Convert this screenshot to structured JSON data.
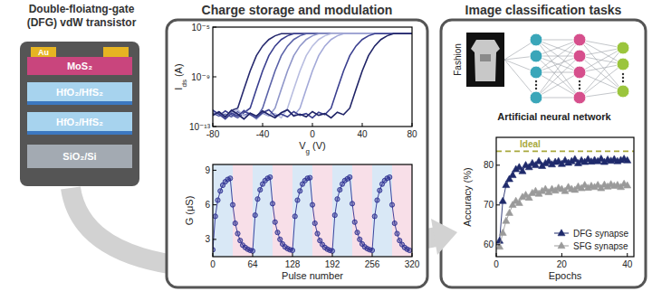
{
  "panels": [
    {
      "title_lines": [
        "Double-floiatng-gate",
        "(DFG) vdW transistor"
      ],
      "layers": [
        "Au",
        "MoS₂",
        "HfO₂/HfS₂",
        "HfO₂/HfS₂",
        "SiO₂/Si"
      ]
    },
    {
      "title": "Charge storage and modulation"
    },
    {
      "title": "Image classification tasks",
      "image_label": "Fashion",
      "network_label": "Artificial neural network"
    }
  ],
  "chart_data": [
    {
      "type": "line",
      "log": "y",
      "x_label": "Vg (V)",
      "y_label": "Ids (A)",
      "xlim": [
        -80,
        80
      ],
      "xticks": [
        -80,
        -40,
        0,
        40,
        80
      ],
      "ylim": [
        1e-13,
        1e-05
      ],
      "yticks": [
        {
          "value": 1e-13,
          "label": "10⁻¹³"
        },
        {
          "value": 1e-09,
          "label": "10⁻⁹"
        },
        {
          "value": 1e-05,
          "label": "10⁻⁵"
        }
      ],
      "x": [
        -80,
        -75,
        -70,
        -65,
        -60,
        -55,
        -50,
        -45,
        -40,
        -35,
        -30,
        -25,
        -20,
        -15,
        -10,
        -5,
        0,
        5,
        10,
        15,
        20,
        25,
        30,
        35,
        40,
        45,
        50,
        55,
        60,
        65,
        70,
        75,
        80
      ],
      "series": [
        {
          "color": "#26296e",
          "line_style": "solid",
          "marker": "none",
          "values": [
            8e-13,
            1.5e-12,
            6e-13,
            2e-12,
            3e-12,
            1e-10,
            3e-09,
            5e-08,
            3e-07,
            1e-06,
            2e-06,
            3e-06,
            3e-06,
            3e-06,
            3e-06,
            3e-06,
            3e-06,
            3e-06,
            3e-06,
            3e-06,
            3e-06,
            3e-06,
            3e-06,
            3e-06,
            3e-06,
            3e-06,
            3e-06,
            3e-06,
            3e-06,
            3e-06,
            3e-06,
            3e-06,
            3e-06
          ]
        },
        {
          "color": "#3a3f8f",
          "line_style": "solid",
          "marker": "none",
          "values": [
            1.2e-12,
            7e-13,
            1.8e-12,
            9e-13,
            5e-13,
            1.3e-12,
            3e-12,
            1e-10,
            3e-09,
            5e-08,
            3e-07,
            1e-06,
            2e-06,
            3e-06,
            3e-06,
            3e-06,
            3e-06,
            3e-06,
            3e-06,
            3e-06,
            3e-06,
            3e-06,
            3e-06,
            3e-06,
            3e-06,
            3e-06,
            3e-06,
            3e-06,
            3e-06,
            3e-06,
            3e-06,
            3e-06,
            3e-06
          ]
        },
        {
          "color": "#5a62a8",
          "line_style": "solid",
          "marker": "none",
          "values": [
            2.2e-12,
            7e-13,
            1e-12,
            6e-13,
            1.6e-12,
            8e-13,
            1.1e-12,
            5e-13,
            3e-12,
            1e-10,
            3e-09,
            5e-08,
            3e-07,
            1e-06,
            2e-06,
            3e-06,
            3e-06,
            3e-06,
            3e-06,
            3e-06,
            3e-06,
            3e-06,
            3e-06,
            3e-06,
            3e-06,
            3e-06,
            3e-06,
            3e-06,
            3e-06,
            3e-06,
            3e-06,
            3e-06,
            3e-06
          ]
        },
        {
          "color": "#8f96c9",
          "line_style": "solid",
          "marker": "none",
          "values": [
            1.4e-12,
            9e-13,
            8e-13,
            1.5e-12,
            6e-13,
            2e-12,
            1e-12,
            4e-13,
            1.2e-12,
            7e-13,
            3e-12,
            1e-10,
            3e-09,
            5e-08,
            3e-07,
            1e-06,
            2e-06,
            3e-06,
            3e-06,
            3e-06,
            3e-06,
            3e-06,
            3e-06,
            3e-06,
            3e-06,
            3e-06,
            3e-06,
            3e-06,
            3e-06,
            3e-06,
            3e-06,
            3e-06,
            3e-06
          ]
        },
        {
          "color": "#b8bde0",
          "line_style": "solid",
          "marker": "none",
          "values": [
            1.8e-12,
            9e-13,
            5e-13,
            1.3e-12,
            2.2e-12,
            7e-13,
            1e-12,
            6e-13,
            1.6e-12,
            8e-13,
            1.1e-12,
            5e-13,
            3e-12,
            1e-10,
            3e-09,
            5e-08,
            3e-07,
            1e-06,
            2e-06,
            3e-06,
            3e-06,
            3e-06,
            3e-06,
            3e-06,
            3e-06,
            3e-06,
            3e-06,
            3e-06,
            3e-06,
            3e-06,
            3e-06,
            3e-06,
            3e-06
          ]
        },
        {
          "color": "#a3a9d8",
          "line_style": "solid",
          "marker": "none",
          "values": [
            8e-13,
            1.5e-12,
            6e-13,
            2e-12,
            1e-12,
            4e-13,
            1.2e-12,
            7e-13,
            1.8e-12,
            9e-13,
            5e-13,
            1.3e-12,
            2.2e-12,
            7e-13,
            3e-12,
            1e-10,
            3e-09,
            5e-08,
            3e-07,
            1e-06,
            2e-06,
            3e-06,
            3e-06,
            3e-06,
            3e-06,
            3e-06,
            3e-06,
            3e-06,
            3e-06,
            3e-06,
            3e-06,
            3e-06,
            3e-06
          ]
        },
        {
          "color": "#3a3f8f",
          "line_style": "solid",
          "marker": "none",
          "values": [
            2e-12,
            1e-12,
            4e-13,
            1.2e-12,
            7e-13,
            1.8e-12,
            9e-13,
            5e-13,
            1.3e-12,
            2.2e-12,
            7e-13,
            1e-12,
            6e-13,
            1.6e-12,
            8e-13,
            1.1e-12,
            5e-13,
            1.4e-12,
            9e-13,
            3e-12,
            1e-10,
            3e-09,
            5e-08,
            3e-07,
            1e-06,
            2e-06,
            3e-06,
            3e-06,
            3e-06,
            3e-06,
            3e-06,
            3e-06,
            3e-06
          ]
        },
        {
          "color": "#1f2366",
          "line_style": "solid",
          "marker": "none",
          "values": [
            8e-13,
            1.5e-12,
            6e-13,
            2e-12,
            1e-12,
            4e-13,
            1.2e-12,
            7e-13,
            1.8e-12,
            9e-13,
            5e-13,
            1.3e-12,
            2.2e-12,
            7e-13,
            1e-12,
            6e-13,
            1.6e-12,
            8e-13,
            1.1e-12,
            5e-13,
            1.4e-12,
            9e-13,
            3e-12,
            1e-10,
            3e-09,
            5e-08,
            3e-07,
            1e-06,
            2e-06,
            3e-06,
            3e-06,
            3e-06,
            3e-06
          ]
        }
      ]
    },
    {
      "type": "line",
      "x_label": "Pulse number",
      "y_label": "G (μS)",
      "xlim": [
        0,
        320
      ],
      "xticks": [
        0,
        64,
        128,
        192,
        256,
        320
      ],
      "ylim": [
        1.5,
        9.5
      ],
      "yticks": [
        3,
        6,
        9
      ],
      "x": [
        0,
        4,
        8,
        12,
        16,
        20,
        24,
        28,
        32,
        36,
        40,
        44,
        48,
        52,
        56,
        60,
        64,
        68,
        72,
        76,
        80,
        84,
        88,
        92,
        96,
        100,
        104,
        108,
        112,
        116,
        120,
        124,
        128,
        132,
        136,
        140,
        144,
        148,
        152,
        156,
        160,
        164,
        168,
        172,
        176,
        180,
        184,
        188,
        192,
        196,
        200,
        204,
        208,
        212,
        216,
        220,
        224,
        228,
        232,
        236,
        240,
        244,
        248,
        252,
        256,
        260,
        264,
        268,
        272,
        276,
        280,
        284,
        288,
        292,
        296,
        300,
        304,
        308,
        312,
        316
      ],
      "series": [
        {
          "color": "#2e3192",
          "marker": "circle",
          "line_style": "solid",
          "values": [
            2.1,
            5.0,
            6.4,
            7.2,
            7.7,
            8.0,
            8.2,
            8.3,
            6.0,
            4.4,
            3.5,
            2.9,
            2.5,
            2.3,
            2.15,
            2.05,
            2.0,
            5.1,
            6.5,
            7.3,
            7.8,
            8.1,
            8.3,
            8.4,
            6.1,
            4.5,
            3.6,
            3.0,
            2.6,
            2.35,
            2.2,
            2.1,
            2.05,
            5.0,
            6.4,
            7.2,
            7.8,
            8.1,
            8.3,
            8.35,
            6.0,
            4.4,
            3.5,
            2.9,
            2.55,
            2.3,
            2.15,
            2.05,
            2.0,
            5.1,
            6.5,
            7.3,
            7.8,
            8.1,
            8.25,
            8.4,
            6.1,
            4.5,
            3.6,
            3.0,
            2.6,
            2.35,
            2.2,
            2.1,
            2.05,
            5.0,
            6.4,
            7.25,
            7.8,
            8.1,
            8.3,
            8.4,
            6.0,
            4.4,
            3.5,
            2.9,
            2.55,
            2.3,
            2.15,
            2.05
          ]
        }
      ]
    },
    {
      "type": "line",
      "x_label": "Epochs",
      "y_label": "Accuracy (%)",
      "legend": "bottom-right",
      "xlim": [
        0,
        42
      ],
      "xticks": [
        0,
        20,
        40
      ],
      "ylim": [
        57,
        87
      ],
      "yticks": [
        60,
        70,
        80
      ],
      "x": [
        1,
        2,
        3,
        4,
        5,
        6,
        7,
        8,
        9,
        10,
        11,
        12,
        13,
        14,
        15,
        16,
        17,
        18,
        19,
        20,
        21,
        22,
        23,
        24,
        25,
        26,
        27,
        28,
        29,
        30,
        31,
        32,
        33,
        34,
        35,
        36,
        37,
        38,
        39,
        40
      ],
      "annotations": [
        {
          "text": "Ideal",
          "y": 83.5,
          "color": "#a8a83c",
          "line_style": "dashed"
        }
      ],
      "series": [
        {
          "name": "DFG synapse",
          "color": "#1f2a6b",
          "marker": "triangle",
          "line_style": "solid",
          "values": [
            61,
            71,
            75,
            76.5,
            77.5,
            79,
            79.5,
            78.5,
            80,
            79.5,
            80.5,
            80,
            81,
            79.8,
            80.5,
            81,
            80.2,
            80.8,
            81,
            80.3,
            81.2,
            80.6,
            81,
            81.5,
            80.5,
            81.2,
            80.8,
            81.5,
            80.9,
            81.3,
            81,
            81.6,
            80.8,
            81.4,
            81.1,
            81.5,
            81,
            81.3,
            81.6,
            81.2
          ]
        },
        {
          "name": "SFG synapse",
          "color": "#9a9a9a",
          "marker": "triangle",
          "line_style": "solid",
          "values": [
            59.5,
            63,
            66,
            68,
            70,
            71,
            70.5,
            72,
            72.5,
            71.8,
            73,
            73.5,
            72.8,
            73.5,
            74,
            73.2,
            74,
            73.6,
            74.3,
            74,
            73.5,
            74.5,
            74,
            73.8,
            74.6,
            74.2,
            75,
            74.3,
            74.8,
            74.5,
            75,
            74.2,
            75.1,
            74.6,
            75.2,
            74.8,
            75,
            74.5,
            75.3,
            74.9
          ]
        }
      ]
    }
  ]
}
